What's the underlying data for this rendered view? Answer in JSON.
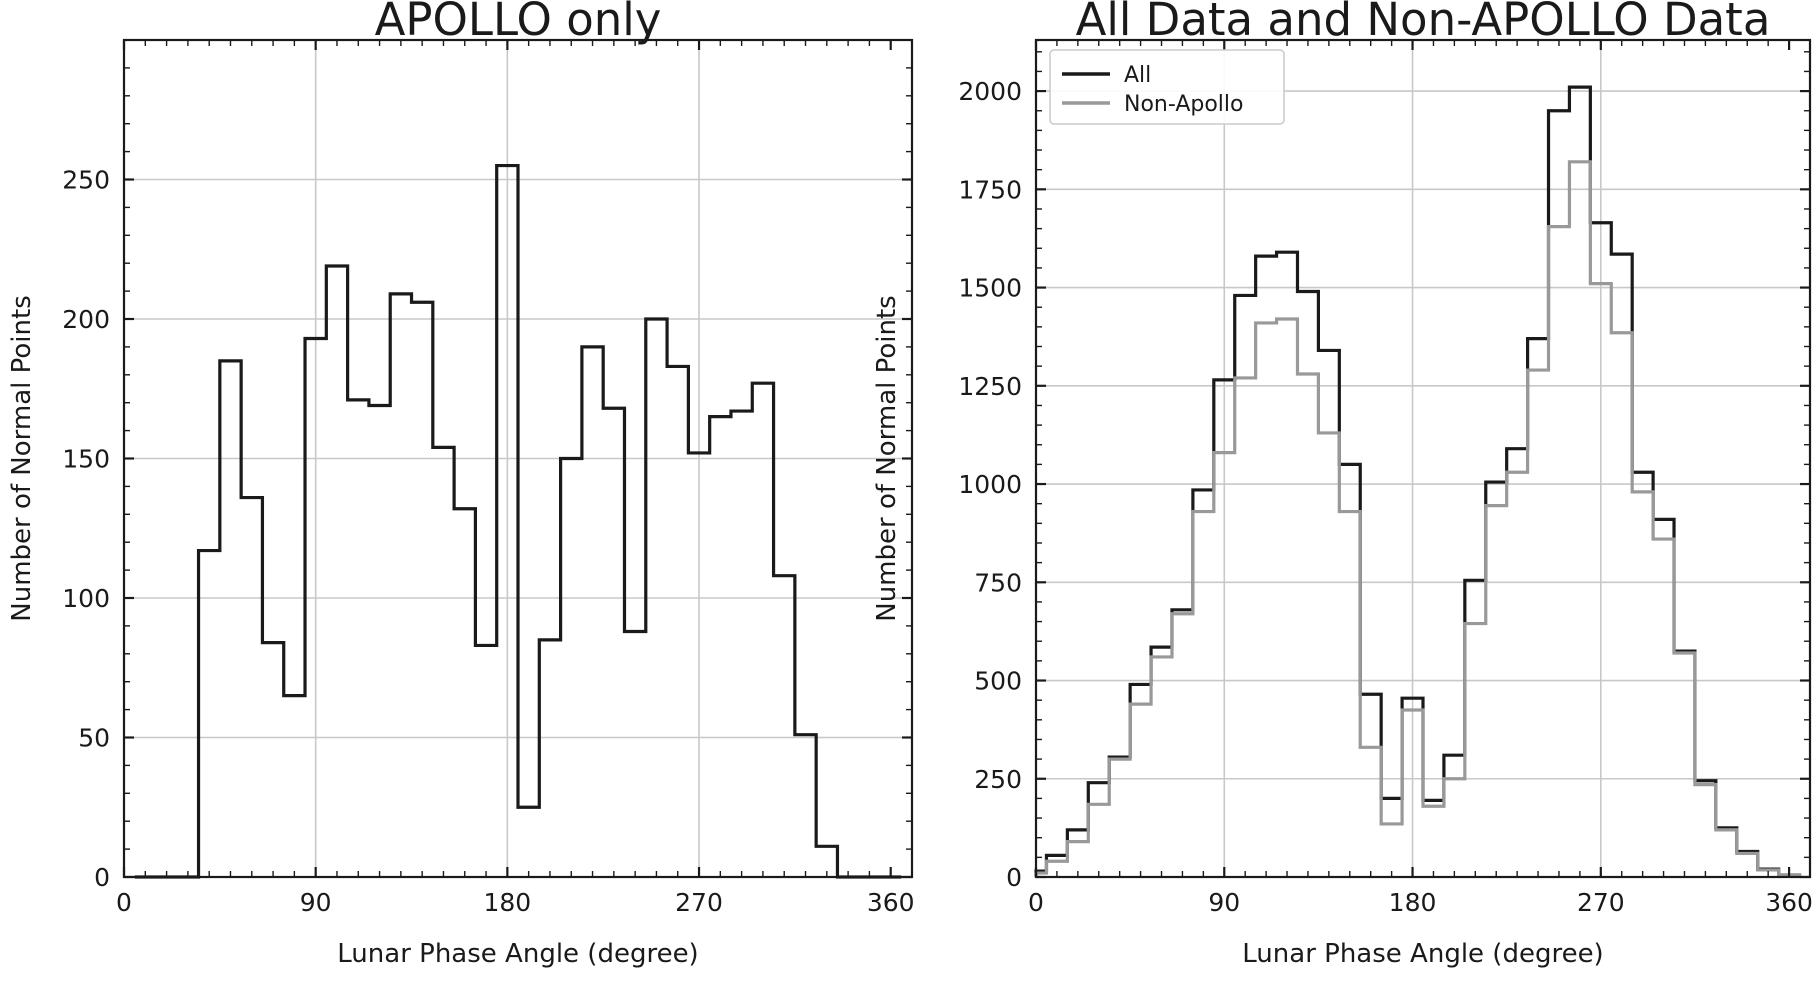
{
  "figure": {
    "background": "#ffffff",
    "grid_color": "#c8c8c8",
    "spine_color": "#1a1a1a",
    "text_color": "#1a1a1a"
  },
  "chart_data": [
    {
      "id": "apollo_only",
      "type": "histogram-step",
      "title": "APOLLO only",
      "xlabel": "Lunar Phase Angle (degree)",
      "ylabel": "Number of Normal Points",
      "xlim": [
        0,
        370
      ],
      "ylim": [
        0,
        300
      ],
      "xticks": [
        0,
        90,
        180,
        270,
        360
      ],
      "yticks": [
        0,
        50,
        100,
        150,
        200,
        250
      ],
      "x_minor_step": 10,
      "y_minor_step": 10,
      "grid": true,
      "legend": null,
      "series": [
        {
          "name": "APOLLO",
          "color": "#1a1a1a",
          "linewidth": 3.2,
          "bin_edges": [
            5,
            15,
            25,
            35,
            45,
            55,
            65,
            75,
            85,
            95,
            105,
            115,
            125,
            135,
            145,
            155,
            165,
            175,
            185,
            195,
            205,
            215,
            225,
            235,
            245,
            255,
            265,
            275,
            285,
            295,
            305,
            315,
            325,
            335,
            345,
            355,
            365
          ],
          "values": [
            0,
            0,
            0,
            117,
            185,
            136,
            84,
            65,
            193,
            219,
            171,
            169,
            209,
            206,
            154,
            132,
            83,
            255,
            25,
            85,
            150,
            190,
            168,
            88,
            200,
            183,
            152,
            165,
            167,
            177,
            108,
            51,
            11,
            0,
            0,
            0
          ]
        }
      ]
    },
    {
      "id": "all_and_non_apollo",
      "type": "histogram-step",
      "title": "All Data and Non-APOLLO Data",
      "xlabel": "Lunar Phase Angle (degree)",
      "ylabel": "Number of Normal Points",
      "xlim": [
        0,
        370
      ],
      "ylim": [
        0,
        2130
      ],
      "xticks": [
        0,
        90,
        180,
        270,
        360
      ],
      "yticks": [
        0,
        250,
        500,
        750,
        1000,
        1250,
        1500,
        1750,
        2000
      ],
      "x_minor_step": 10,
      "y_minor_step": 50,
      "grid": true,
      "legend": {
        "position": "upper-left",
        "items": [
          {
            "label": "All",
            "color": "#1a1a1a"
          },
          {
            "label": "Non-Apollo",
            "color": "#999999"
          }
        ]
      },
      "series": [
        {
          "name": "All",
          "color": "#1a1a1a",
          "linewidth": 3.2,
          "bin_edges": [
            0,
            5,
            15,
            25,
            35,
            45,
            55,
            65,
            75,
            85,
            95,
            105,
            115,
            125,
            135,
            145,
            155,
            165,
            175,
            185,
            195,
            205,
            215,
            225,
            235,
            245,
            255,
            265,
            275,
            285,
            295,
            305,
            315,
            325,
            335,
            345,
            355,
            365
          ],
          "values": [
            15,
            55,
            120,
            240,
            305,
            490,
            585,
            680,
            985,
            1265,
            1480,
            1580,
            1590,
            1490,
            1340,
            1050,
            465,
            200,
            455,
            195,
            310,
            755,
            1005,
            1090,
            1370,
            1950,
            2010,
            1665,
            1585,
            1030,
            910,
            575,
            245,
            125,
            65,
            20,
            5
          ]
        },
        {
          "name": "Non-Apollo",
          "color": "#999999",
          "linewidth": 3.2,
          "bin_edges": [
            0,
            5,
            15,
            25,
            35,
            45,
            55,
            65,
            75,
            85,
            95,
            105,
            115,
            125,
            135,
            145,
            155,
            165,
            175,
            185,
            195,
            205,
            215,
            225,
            235,
            245,
            255,
            265,
            275,
            285,
            295,
            305,
            315,
            325,
            335,
            345,
            355,
            365
          ],
          "values": [
            10,
            40,
            90,
            185,
            300,
            440,
            560,
            670,
            930,
            1080,
            1270,
            1410,
            1420,
            1280,
            1130,
            930,
            330,
            135,
            425,
            180,
            250,
            645,
            945,
            1030,
            1290,
            1655,
            1820,
            1510,
            1385,
            980,
            860,
            570,
            235,
            120,
            60,
            18,
            5
          ]
        }
      ]
    }
  ]
}
